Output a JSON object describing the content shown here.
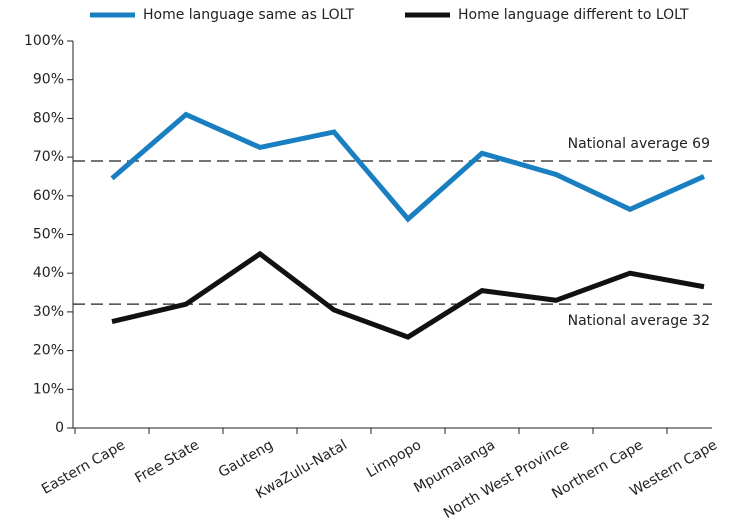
{
  "chart_data": {
    "type": "line",
    "categories": [
      "Eastern Cape",
      "Free State",
      "Gauteng",
      "KwaZulu-Natal",
      "Limpopo",
      "Mpumalanga",
      "North West Province",
      "Northern Cape",
      "Western Cape"
    ],
    "series": [
      {
        "name": "Home language same as LOLT",
        "color": "#1a7fc1",
        "values": [
          64.5,
          81,
          72.5,
          76.5,
          54,
          71,
          65.5,
          56.5,
          65
        ]
      },
      {
        "name": "Home language different to LOLT",
        "color": "#111111",
        "values": [
          27.5,
          32,
          45,
          30.5,
          23.5,
          35.5,
          33,
          40,
          36.5
        ]
      }
    ],
    "reference_lines": [
      {
        "value": 69,
        "label": "National average 69"
      },
      {
        "value": 32,
        "label": "National average 32"
      }
    ],
    "ylim": [
      0,
      100
    ],
    "yticks": [
      0,
      {
        "value": 10,
        "label": "10%"
      },
      {
        "value": 20,
        "label": "20%"
      },
      {
        "value": 30,
        "label": "30%"
      },
      {
        "value": 40,
        "label": "40%"
      },
      {
        "value": 50,
        "label": "50%"
      },
      {
        "value": 60,
        "label": "60%"
      },
      {
        "value": 70,
        "label": "70%"
      },
      {
        "value": 80,
        "label": "80%"
      },
      {
        "value": 90,
        "label": "90%"
      },
      {
        "value": 100,
        "label": "100%"
      }
    ],
    "legend": "top"
  }
}
